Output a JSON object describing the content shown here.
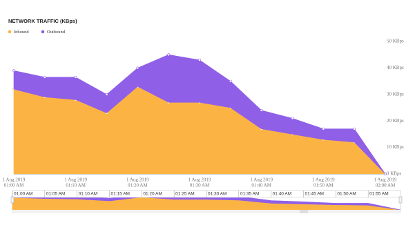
{
  "chart_data": {
    "type": "stacked-area",
    "title": "NETWORK TRAFFIC (KBps)",
    "date": "1 Aug 2019",
    "x": [
      "01:00 AM",
      "01:05 AM",
      "01:10 AM",
      "01:15 AM",
      "01:20 AM",
      "01:25 AM",
      "01:30 AM",
      "01:35 AM",
      "01:40 AM",
      "01:45 AM",
      "01:50 AM",
      "01:55 AM",
      "02:00 AM"
    ],
    "series": [
      {
        "name": "Inbound",
        "color": "#fbb444",
        "values": [
          32,
          29,
          28,
          23,
          33,
          27,
          27,
          25,
          17,
          15,
          13,
          12,
          0
        ]
      },
      {
        "name": "Outbound",
        "color": "#8f5fe8",
        "values": [
          7,
          7.5,
          8.5,
          7,
          7,
          18,
          16,
          10,
          7,
          6,
          4,
          5,
          0
        ]
      }
    ],
    "ylim": [
      0,
      50
    ],
    "yticks": [
      {
        "value": 0,
        "label": "0 KBps"
      },
      {
        "value": 10,
        "label": "10 KBps"
      },
      {
        "value": 20,
        "label": "20 KBps"
      },
      {
        "value": 30,
        "label": "30 KBps"
      },
      {
        "value": 40,
        "label": "40 KBps"
      },
      {
        "value": 50,
        "label": "50 KBps"
      }
    ],
    "grid": false,
    "legend": "top-left"
  }
}
